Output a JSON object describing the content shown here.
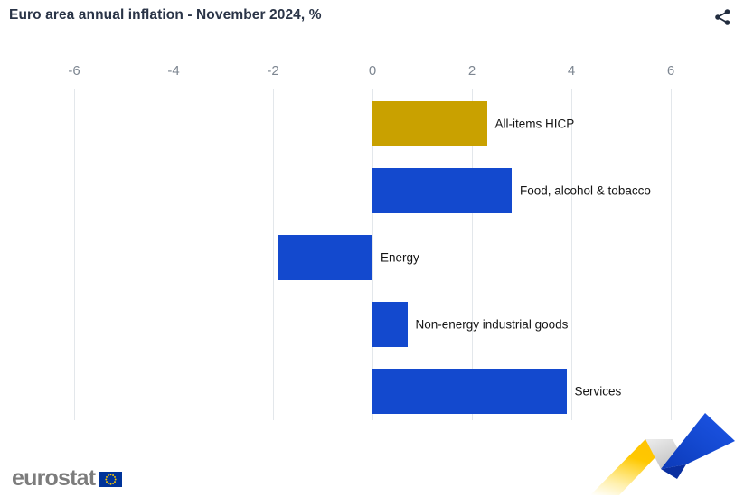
{
  "header": {
    "title": "Euro area annual inflation - November 2024, %"
  },
  "chart_data": {
    "type": "bar",
    "orientation": "horizontal",
    "title": "Euro area annual inflation - November 2024, %",
    "categories": [
      "All-items HICP",
      "Food, alcohol & tobacco",
      "Energy",
      "Non-energy industrial goods",
      "Services"
    ],
    "values": [
      2.3,
      2.8,
      -1.9,
      0.7,
      3.9
    ],
    "bar_colors": [
      "#C9A100",
      "#1349CE",
      "#1349CE",
      "#1349CE",
      "#1349CE"
    ],
    "xlim": [
      -6,
      6
    ],
    "xticks": [
      -6,
      -4,
      -2,
      0,
      2,
      4,
      6
    ],
    "grid": true,
    "legend": false,
    "category_labels_position": "right-of-bar"
  },
  "footer": {
    "logo_text": "eurostat"
  },
  "colors": {
    "accent_gold": "#C9A100",
    "accent_blue": "#1349CE",
    "grid_line": "#E3E7EB",
    "title_text": "#2A3447",
    "axis_text": "#7D8691",
    "bar_label_text": "#141414",
    "share_icon": "#222D3F",
    "logo_text": "#7C7C7C",
    "eu_flag_blue": "#003399",
    "eu_star_yellow": "#FFCC00",
    "ribbon_yellow": "#FFC800",
    "ribbon_gray": "#D9D9D9",
    "ribbon_blue": "#1446D0"
  }
}
